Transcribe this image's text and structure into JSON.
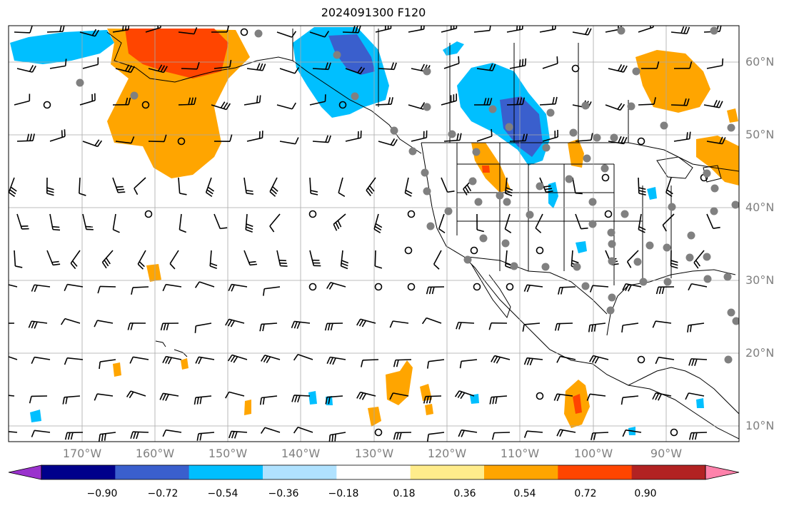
{
  "title": "2024091300 F120",
  "lat_labels": [
    "60°N",
    "50°N",
    "40°N",
    "30°N",
    "20°N",
    "10°N"
  ],
  "lon_labels": [
    "170°W",
    "160°W",
    "150°W",
    "140°W",
    "130°W",
    "120°W",
    "110°W",
    "100°W",
    "90°W"
  ],
  "colorbar": {
    "ticks": [
      "−0.90",
      "−0.72",
      "−0.54",
      "−0.36",
      "−0.18",
      "0.18",
      "0.36",
      "0.54",
      "0.72",
      "0.90"
    ],
    "colors": [
      "#9a32cd",
      "#00008b",
      "#3a5fcd",
      "#00bfff",
      "#b0e2ff",
      "#ffffff",
      "#ffec8b",
      "#ffa500",
      "#ff4500",
      "#b22222",
      "#ff82ab"
    ]
  }
}
